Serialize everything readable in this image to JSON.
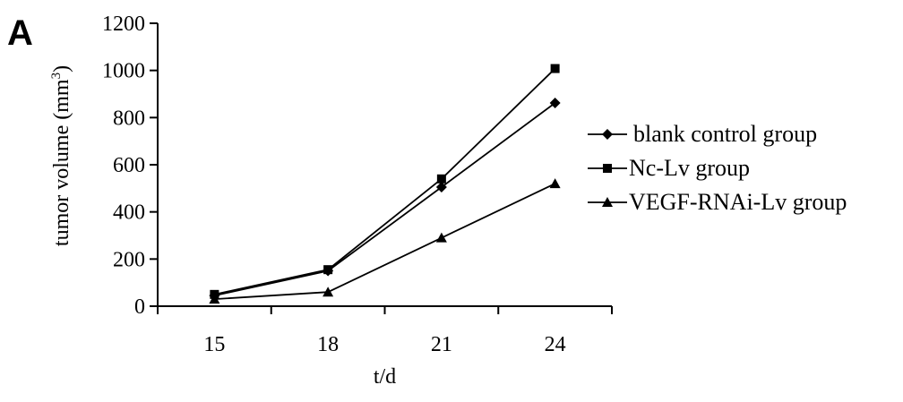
{
  "panel_label": "A",
  "chart_data": {
    "type": "line",
    "title": "",
    "xlabel": "t/d",
    "ylabel": "tumor volume (mm",
    "ylabel_sup": "3",
    "ylabel_close": ")",
    "categories": [
      "15",
      "18",
      "21",
      "24"
    ],
    "ylim": [
      0,
      1200
    ],
    "yticks": [
      "0",
      "200",
      "400",
      "600",
      "800",
      "1000",
      "1200"
    ],
    "grid": false,
    "legend_position": "right",
    "series": [
      {
        "name": "blank control group",
        "marker": "diamond",
        "values": [
          45,
          150,
          505,
          862
        ]
      },
      {
        "name": "Nc-Lv group",
        "marker": "square",
        "values": [
          50,
          155,
          540,
          1008
        ]
      },
      {
        "name": "VEGF-RNAi-Lv group",
        "marker": "triangle",
        "values": [
          30,
          60,
          290,
          520
        ]
      }
    ],
    "colors": {
      "line": "#000000",
      "background": "#ffffff"
    }
  }
}
